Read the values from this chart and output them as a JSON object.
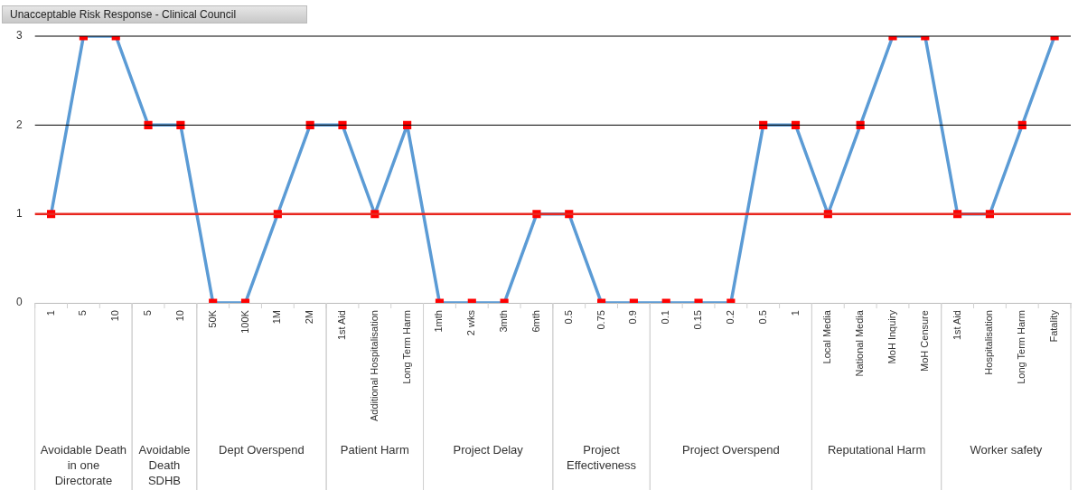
{
  "chart_data": {
    "type": "line",
    "title": "Unacceptable Risk Response - Clinical Council",
    "categories": [
      "1",
      "5",
      "10",
      "5",
      "10",
      "50K",
      "100K",
      "1M",
      "2M",
      "1st Aid",
      "Additional Hospitalisation",
      "Long Term Harm",
      "1mth",
      "2 wks",
      "3mth",
      "6mth",
      "0.5",
      "0.75",
      "0.9",
      "0.1",
      "0.15",
      "0.2",
      "0.5",
      "1",
      "Local Media",
      "National Media",
      "MoH Inquiry",
      "MoH Censure",
      "1st Aid",
      "Hospitalisation",
      "Long Term Harm",
      "Fatality"
    ],
    "series": [
      {
        "color": "#5b9bd5",
        "colors": [
          "#ff0000",
          "#ff0000",
          "#ff0000",
          "#ff0000",
          "#ff0000",
          "#ff0000",
          "#ff0000",
          "#ff0000",
          "#ff0000",
          "#ff0000",
          "#ff0000",
          "#ff0000",
          "#ff0000",
          "#ff0000",
          "#ff0000",
          "#ff0000",
          "#ff0000",
          "#ff0000",
          "#ff0000",
          "#ff0000",
          "#ff0000",
          "#ff0000",
          "#ff0000",
          "#ff0000",
          "#ff0000",
          "#ff0000",
          "#ff0000",
          "#ff0000",
          "#ff0000",
          "#ff0000",
          "#ff0000",
          "#ff0000"
        ],
        "values": [
          1,
          3,
          3,
          2,
          2,
          0,
          0,
          1,
          2,
          2,
          1,
          2,
          0,
          0,
          0,
          1,
          1,
          0,
          0,
          0,
          0,
          0,
          2,
          2,
          1,
          2,
          3,
          3,
          1,
          1,
          2,
          3
        ]
      }
    ],
    "ylim": [
      0,
      3
    ],
    "yticks": [
      0,
      1,
      2,
      3
    ],
    "legend": false,
    "marker": "square",
    "line_style": "solid",
    "ref_lines": [
      {
        "axis": "y",
        "value": 1,
        "color": "#e8271f"
      },
      {
        "axis": "y",
        "value": 2,
        "color": "#000000"
      },
      {
        "axis": "y",
        "value": 3,
        "color": "#000000"
      }
    ],
    "annotations": [
      "Avoidable Death in one Directorate",
      "Avoidable Death SDHB",
      "Dept Overspend",
      "Patient Harm",
      "Project Delay",
      "Project Effectiveness",
      "Project Overspend",
      "Reputational Harm",
      "Worker safety"
    ]
  }
}
